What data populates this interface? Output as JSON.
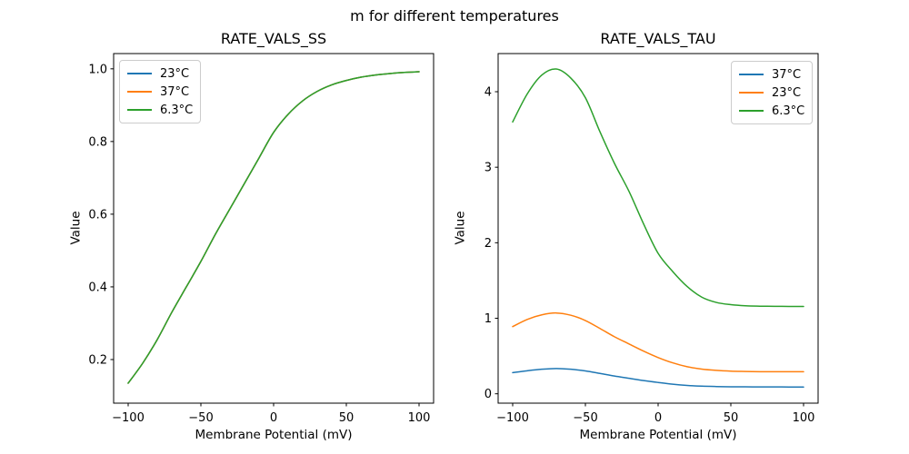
{
  "figure": {
    "suptitle": "m for different temperatures",
    "background": "#ffffff",
    "axis_color": "#000000",
    "legend_border_color": "#cccccc"
  },
  "chart_data": [
    {
      "type": "line",
      "title": "RATE_VALS_SS",
      "xlabel": "Membrane Potential (mV)",
      "ylabel": "Value",
      "xlim": [
        -110,
        110
      ],
      "ylim": [
        0.08,
        1.042
      ],
      "xticks": [
        -100,
        -50,
        0,
        50,
        100
      ],
      "xticklabels": [
        "−100",
        "−50",
        "0",
        "50",
        "100"
      ],
      "yticks": [
        0.2,
        0.4,
        0.6,
        0.8,
        1.0
      ],
      "yticklabels": [
        "0.2",
        "0.4",
        "0.6",
        "0.8",
        "1.0"
      ],
      "grid": false,
      "legend_position": "upper-left",
      "x": [
        -100,
        -90,
        -80,
        -70,
        -60,
        -50,
        -40,
        -30,
        -20,
        -10,
        0,
        10,
        20,
        30,
        40,
        50,
        60,
        70,
        80,
        90,
        100
      ],
      "series": [
        {
          "name": "23°C",
          "color": "#1f77b4",
          "values": [
            0.135,
            0.19,
            0.255,
            0.33,
            0.4,
            0.47,
            0.545,
            0.615,
            0.685,
            0.755,
            0.825,
            0.875,
            0.912,
            0.938,
            0.956,
            0.968,
            0.977,
            0.983,
            0.987,
            0.99,
            0.992
          ]
        },
        {
          "name": "37°C",
          "color": "#ff7f0e",
          "values": [
            0.135,
            0.19,
            0.255,
            0.33,
            0.4,
            0.47,
            0.545,
            0.615,
            0.685,
            0.755,
            0.825,
            0.875,
            0.912,
            0.938,
            0.956,
            0.968,
            0.977,
            0.983,
            0.987,
            0.99,
            0.992
          ]
        },
        {
          "name": "6.3°C",
          "color": "#2ca02c",
          "values": [
            0.135,
            0.19,
            0.255,
            0.33,
            0.4,
            0.47,
            0.545,
            0.615,
            0.685,
            0.755,
            0.825,
            0.875,
            0.912,
            0.938,
            0.956,
            0.968,
            0.977,
            0.983,
            0.987,
            0.99,
            0.992
          ]
        }
      ]
    },
    {
      "type": "line",
      "title": "RATE_VALS_TAU",
      "xlabel": "Membrane Potential (mV)",
      "ylabel": "Value",
      "xlim": [
        -110,
        110
      ],
      "ylim": [
        -0.124,
        4.505
      ],
      "xticks": [
        -100,
        -50,
        0,
        50,
        100
      ],
      "xticklabels": [
        "−100",
        "−50",
        "0",
        "50",
        "100"
      ],
      "yticks": [
        0,
        1,
        2,
        3,
        4
      ],
      "yticklabels": [
        "0",
        "1",
        "2",
        "3",
        "4"
      ],
      "grid": false,
      "legend_position": "upper-right",
      "x": [
        -100,
        -90,
        -80,
        -70,
        -60,
        -50,
        -40,
        -30,
        -20,
        -10,
        0,
        10,
        20,
        30,
        40,
        50,
        60,
        70,
        80,
        90,
        100
      ],
      "series": [
        {
          "name": "37°C",
          "color": "#1f77b4",
          "values": [
            0.28,
            0.305,
            0.325,
            0.335,
            0.325,
            0.303,
            0.27,
            0.235,
            0.205,
            0.175,
            0.15,
            0.127,
            0.111,
            0.101,
            0.096,
            0.093,
            0.092,
            0.091,
            0.091,
            0.09,
            0.09
          ]
        },
        {
          "name": "23°C",
          "color": "#ff7f0e",
          "values": [
            0.89,
            0.985,
            1.045,
            1.07,
            1.04,
            0.97,
            0.865,
            0.755,
            0.66,
            0.565,
            0.48,
            0.41,
            0.358,
            0.327,
            0.31,
            0.3,
            0.296,
            0.293,
            0.292,
            0.292,
            0.292
          ]
        },
        {
          "name": "6.3°C",
          "color": "#2ca02c",
          "values": [
            3.6,
            3.97,
            4.22,
            4.3,
            4.18,
            3.92,
            3.47,
            3.05,
            2.68,
            2.25,
            1.86,
            1.62,
            1.42,
            1.28,
            1.21,
            1.18,
            1.165,
            1.16,
            1.158,
            1.157,
            1.157
          ]
        }
      ]
    }
  ]
}
